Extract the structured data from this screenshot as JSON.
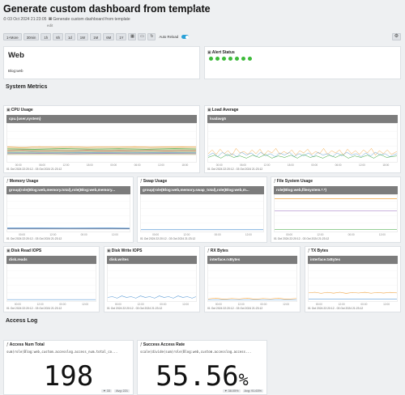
{
  "header": {
    "title": "Generate custom dashboard from template",
    "date": "03 Oct 2024 21:23:05",
    "description": "Generate custom dashboard from template",
    "edit": "edit"
  },
  "toolbar": {
    "buttons": [
      "1+More",
      "30min",
      "1h",
      "6h",
      "1d",
      "1W",
      "1M",
      "6M",
      "1Y"
    ],
    "auto_reload": "Auto Reload"
  },
  "web_panel": {
    "title": "Web",
    "subtitle": "Blog:web"
  },
  "alert_panel": {
    "title": "Alert Status",
    "status_color": "#3dba3a",
    "count": 7
  },
  "sections": {
    "system": "System Metrics",
    "access": "Access Log"
  },
  "time_range": "01 Oct 2024 22:20:12 - 03 Oct 2024 21:23:12",
  "x_ticks": [
    "00:00",
    "06:00",
    "12:00",
    "18:00",
    "00:00",
    "06:00",
    "12:00",
    "18:00"
  ],
  "x_ticks_small": [
    "00:00",
    "12:00",
    "00:00",
    "12:00"
  ],
  "panels": {
    "cpu": {
      "title": "CPU Usage",
      "query": "cpu.{user,system}"
    },
    "load": {
      "title": "Load Average",
      "query": "loadavg5"
    },
    "mem": {
      "title": "Memory Usage",
      "query": "group(role(Blog:web,memory.total),role(Blog:web,memory..."
    },
    "swap": {
      "title": "Swap Usage",
      "query": "group(role(Blog:web,memory.swap_total),role(Blog:web,m..."
    },
    "fs": {
      "title": "File System Usage",
      "query": "role(Blog:web,filesystem.*.*)"
    },
    "diskr": {
      "title": "Disk Read IOPS",
      "query": "disk.reads"
    },
    "diskw": {
      "title": "Disk Write IOPS",
      "query": "disk.writes"
    },
    "rx": {
      "title": "RX Bytes",
      "query": "interface.rxBytes"
    },
    "tx": {
      "title": "TX Bytes",
      "query": "interface.txBytes"
    }
  },
  "access_num": {
    "title": "Access Num Total",
    "query": "sum(role(Blog:web,custom.accesslog.access_num.total_co...",
    "value": "198",
    "foot_a": "33",
    "foot_b": "Avg: 221"
  },
  "success_rate": {
    "title": "Success Access Rate",
    "query": "scale(divide(sum(role(Blog:web,custom.accesslog.access...",
    "value": "55.56",
    "unit": "%",
    "foot_a": "38.05%",
    "foot_b": "Avg: 91.63%"
  }
}
